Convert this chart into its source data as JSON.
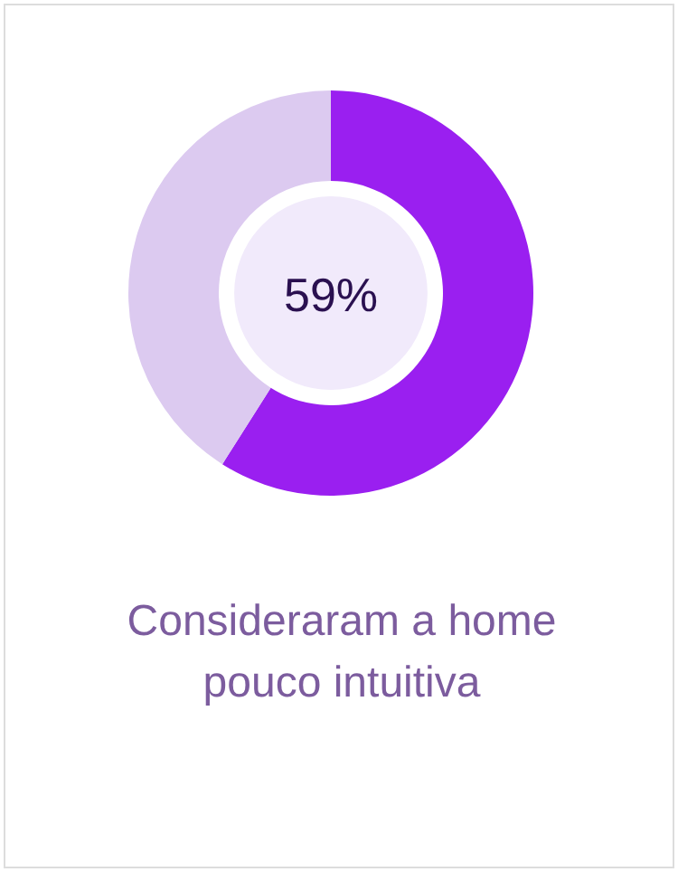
{
  "chart_data": {
    "type": "donut",
    "categories": [
      null,
      null
    ],
    "values": [
      59,
      41
    ],
    "colors": [
      "#9a1ff0",
      "#dccaf0"
    ],
    "value_labels": [
      "59%",
      null
    ],
    "title": "Consideraram a home pouco intuitiva"
  }
}
